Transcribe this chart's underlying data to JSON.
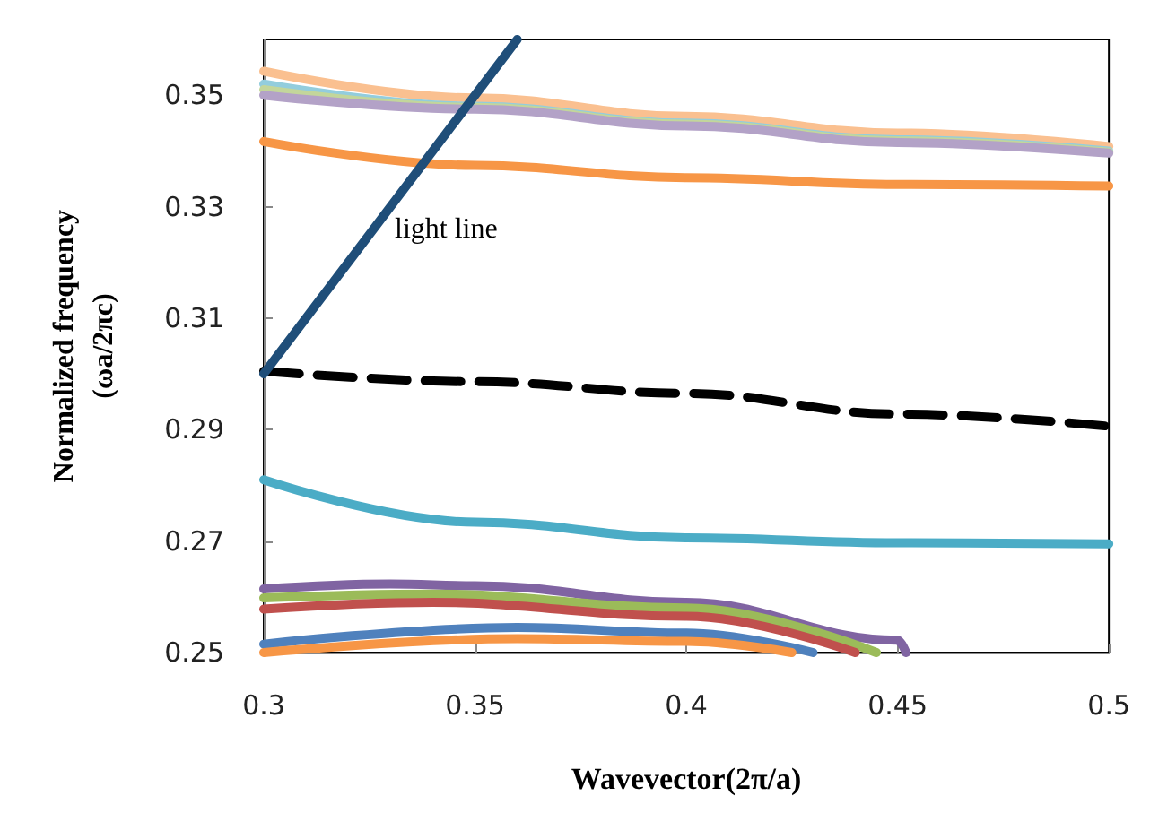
{
  "chart_data": {
    "type": "line",
    "xlabel": "Wavevector(2π/a)",
    "ylabel": "Normalized frequency\n(ωa/2πc)",
    "xlim": [
      0.3,
      0.5
    ],
    "ylim": [
      0.25,
      0.36
    ],
    "xticks": [
      0.3,
      0.35,
      0.4,
      0.45,
      0.5
    ],
    "yticks": [
      0.25,
      0.27,
      0.29,
      0.31,
      0.33,
      0.35
    ],
    "grid": false,
    "marker": "none",
    "annotations": [
      "light line"
    ],
    "series": [
      {
        "color": "#fac090",
        "x": [
          0.3,
          0.35,
          0.4,
          0.45,
          0.5
        ],
        "values": [
          0.3543,
          0.3495,
          0.3462,
          0.3432,
          0.3408
        ]
      },
      {
        "color": "#93cddd",
        "x": [
          0.3,
          0.35,
          0.4,
          0.45,
          0.5
        ],
        "values": [
          0.352,
          0.348,
          0.345,
          0.342,
          0.34
        ]
      },
      {
        "color": "#c3d69b",
        "x": [
          0.3,
          0.35,
          0.4,
          0.45,
          0.5
        ],
        "values": [
          0.351,
          0.3478,
          0.3448,
          0.3418,
          0.3398
        ]
      },
      {
        "color": "#b3a2c7",
        "x": [
          0.3,
          0.35,
          0.4,
          0.45,
          0.5
        ],
        "values": [
          0.35,
          0.3475,
          0.3445,
          0.3415,
          0.3396
        ]
      },
      {
        "color": "#f79646",
        "x": [
          0.3,
          0.35,
          0.4,
          0.45,
          0.5
        ],
        "values": [
          0.3417,
          0.3374,
          0.3352,
          0.334,
          0.3337
        ]
      },
      {
        "color": "#000000",
        "line_style": "dashed",
        "x": [
          0.3,
          0.35,
          0.4,
          0.45,
          0.5
        ],
        "values": [
          0.3005,
          0.2986,
          0.2965,
          0.2928,
          0.2906
        ]
      },
      {
        "color": "#4bacc6",
        "x": [
          0.3,
          0.35,
          0.4,
          0.45,
          0.5
        ],
        "values": [
          0.281,
          0.2734,
          0.2706,
          0.2697,
          0.2695
        ]
      },
      {
        "color": "#8064a2",
        "x": [
          0.3,
          0.33,
          0.35,
          0.4,
          0.45,
          0.452
        ],
        "values": [
          0.2614,
          0.2623,
          0.262,
          0.259,
          0.2522,
          0.25
        ]
      },
      {
        "color": "#9bbb59",
        "x": [
          0.3,
          0.34,
          0.4,
          0.445
        ],
        "values": [
          0.2598,
          0.2605,
          0.258,
          0.25
        ]
      },
      {
        "color": "#c0504d",
        "x": [
          0.3,
          0.34,
          0.4,
          0.44
        ],
        "values": [
          0.2578,
          0.259,
          0.2565,
          0.25
        ]
      },
      {
        "color": "#4f81bd",
        "x": [
          0.3,
          0.36,
          0.4,
          0.43
        ],
        "values": [
          0.2515,
          0.2545,
          0.2535,
          0.25
        ]
      },
      {
        "color": "#f79646",
        "x": [
          0.3,
          0.36,
          0.4,
          0.425
        ],
        "values": [
          0.25,
          0.2525,
          0.252,
          0.25
        ]
      },
      {
        "color": "#1f4e79",
        "x": [
          0.3,
          0.36
        ],
        "values": [
          0.3,
          0.36
        ]
      }
    ]
  }
}
